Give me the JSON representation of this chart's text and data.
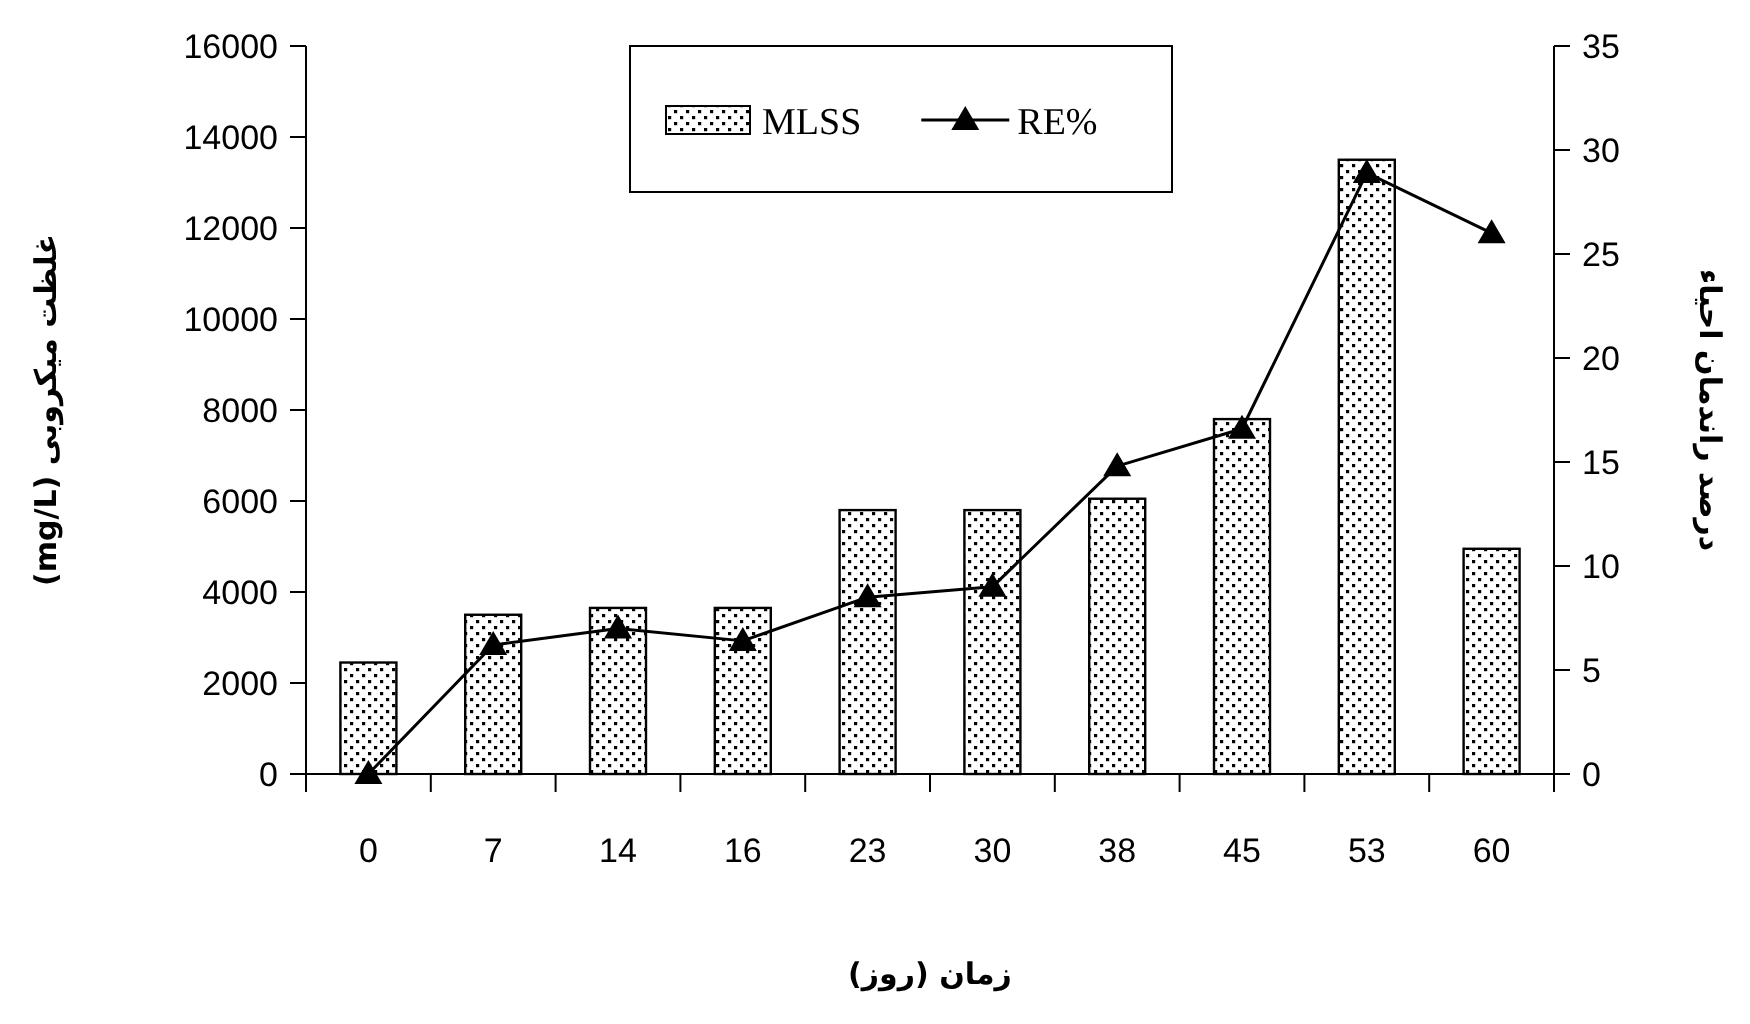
{
  "chart_data": {
    "type": "bar",
    "xlabel": "زمان (روز)",
    "ylabel": "غلظت میکروبی (mg/L)",
    "y2label": "درصد راندمان احیاء",
    "categories": [
      "0",
      "7",
      "14",
      "16",
      "23",
      "30",
      "38",
      "45",
      "53",
      "60"
    ],
    "series": [
      {
        "name": "MLSS",
        "color": "#000000",
        "values": [
          2450,
          3500,
          3650,
          3650,
          5800,
          5800,
          6050,
          7800,
          13500,
          4950
        ]
      },
      {
        "name": "RE%",
        "type": "line",
        "axis": "y2",
        "color": "#000000",
        "values": [
          0,
          6.2,
          7.0,
          6.4,
          8.5,
          9.0,
          14.8,
          16.6,
          28.9,
          26.0
        ]
      }
    ],
    "ylim": [
      0,
      16000
    ],
    "yticks": [
      0,
      2000,
      4000,
      6000,
      8000,
      10000,
      12000,
      14000,
      16000
    ],
    "y2lim": [
      0,
      35
    ],
    "y2ticks": [
      0,
      5,
      10,
      15,
      20,
      25,
      30,
      35
    ],
    "marker": "triangle",
    "line_style": "solid",
    "grid": false,
    "legend": "top"
  }
}
